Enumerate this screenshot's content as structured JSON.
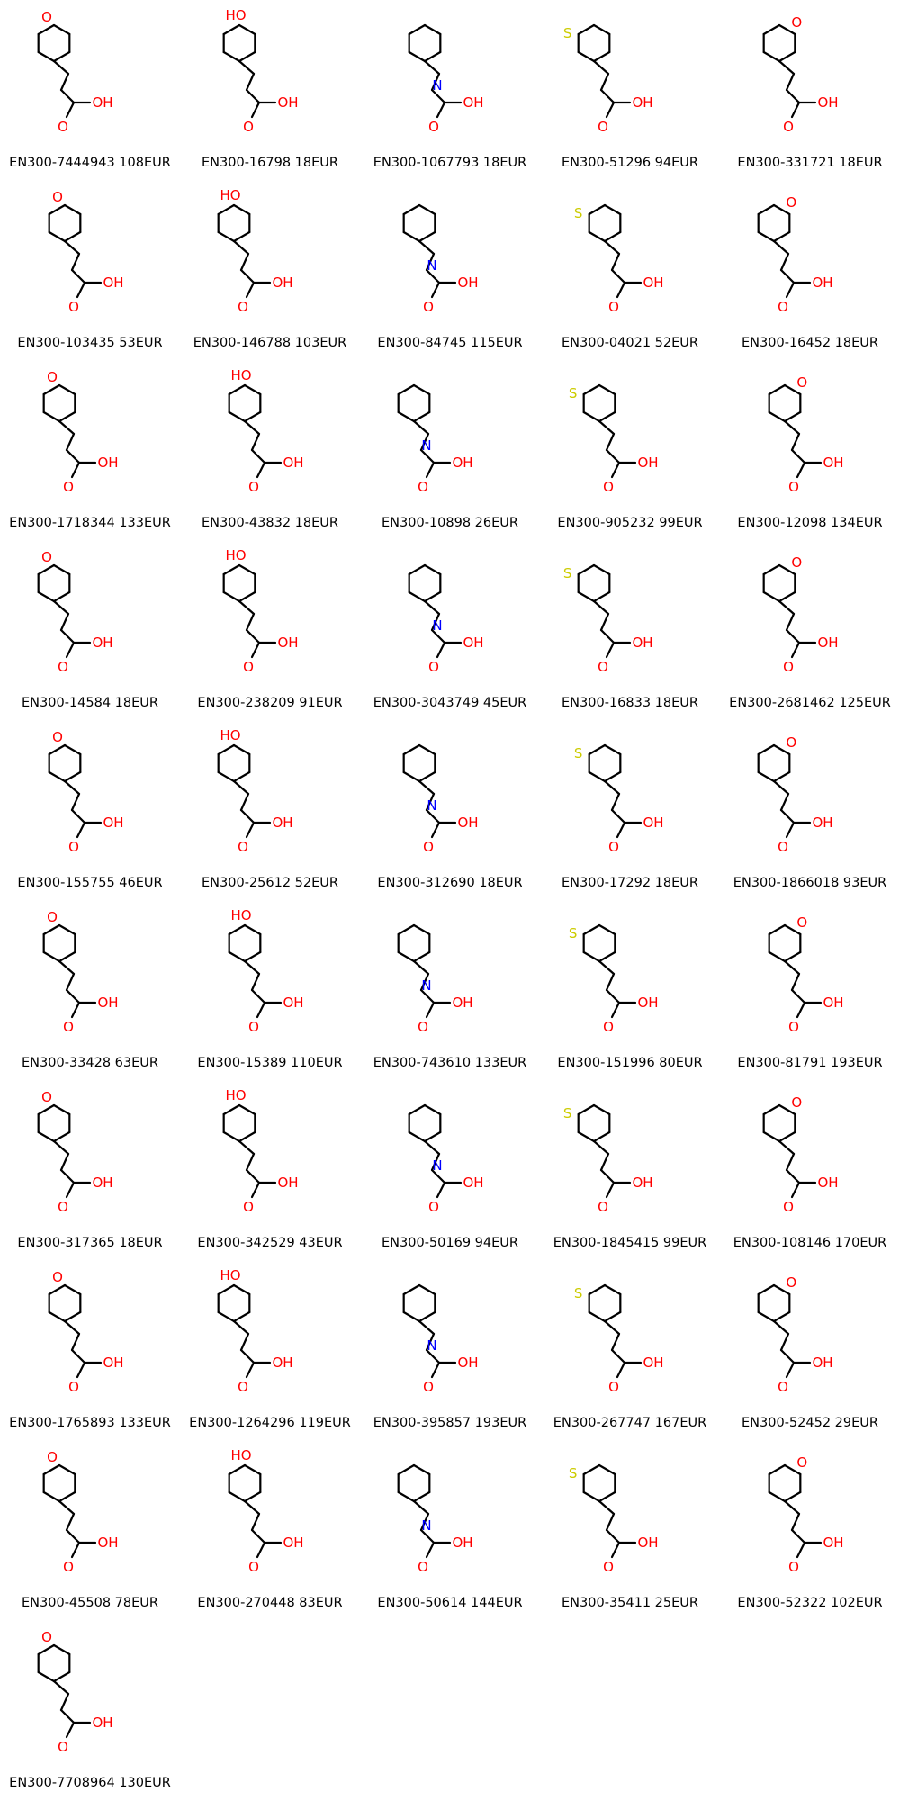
{
  "colors": {
    "carbon": "#000000",
    "oxygen": "#ff0000",
    "nitrogen": "#0000ff",
    "sulfur": "#cccc00",
    "fluorine": "#33cccc",
    "chlorine": "#00cc00"
  },
  "compounds": [
    {
      "id": "EN300-7444943",
      "price": "108EUR",
      "label": "EN300-7444943 108EUR"
    },
    {
      "id": "EN300-16798",
      "price": "18EUR",
      "label": "EN300-16798 18EUR"
    },
    {
      "id": "EN300-1067793",
      "price": "18EUR",
      "label": "EN300-1067793 18EUR"
    },
    {
      "id": "EN300-51296",
      "price": "94EUR",
      "label": "EN300-51296 94EUR"
    },
    {
      "id": "EN300-331721",
      "price": "18EUR",
      "label": "EN300-331721 18EUR"
    },
    {
      "id": "EN300-103435",
      "price": "53EUR",
      "label": "EN300-103435 53EUR"
    },
    {
      "id": "EN300-146788",
      "price": "103EUR",
      "label": "EN300-146788 103EUR"
    },
    {
      "id": "EN300-84745",
      "price": "115EUR",
      "label": "EN300-84745 115EUR"
    },
    {
      "id": "EN300-04021",
      "price": "52EUR",
      "label": "EN300-04021 52EUR"
    },
    {
      "id": "EN300-16452",
      "price": "18EUR",
      "label": "EN300-16452 18EUR"
    },
    {
      "id": "EN300-1718344",
      "price": "133EUR",
      "label": "EN300-1718344 133EUR"
    },
    {
      "id": "EN300-43832",
      "price": "18EUR",
      "label": "EN300-43832 18EUR"
    },
    {
      "id": "EN300-10898",
      "price": "26EUR",
      "label": "EN300-10898 26EUR"
    },
    {
      "id": "EN300-905232",
      "price": "99EUR",
      "label": "EN300-905232 99EUR"
    },
    {
      "id": "EN300-12098",
      "price": "134EUR",
      "label": "EN300-12098 134EUR"
    },
    {
      "id": "EN300-14584",
      "price": "18EUR",
      "label": "EN300-14584 18EUR"
    },
    {
      "id": "EN300-238209",
      "price": "91EUR",
      "label": "EN300-238209 91EUR"
    },
    {
      "id": "EN300-3043749",
      "price": "45EUR",
      "label": "EN300-3043749 45EUR"
    },
    {
      "id": "EN300-16833",
      "price": "18EUR",
      "label": "EN300-16833 18EUR"
    },
    {
      "id": "EN300-2681462",
      "price": "125EUR",
      "label": "EN300-2681462 125EUR"
    },
    {
      "id": "EN300-155755",
      "price": "46EUR",
      "label": "EN300-155755 46EUR"
    },
    {
      "id": "EN300-25612",
      "price": "52EUR",
      "label": "EN300-25612 52EUR"
    },
    {
      "id": "EN300-312690",
      "price": "18EUR",
      "label": "EN300-312690 18EUR"
    },
    {
      "id": "EN300-17292",
      "price": "18EUR",
      "label": "EN300-17292 18EUR"
    },
    {
      "id": "EN300-1866018",
      "price": "93EUR",
      "label": "EN300-1866018 93EUR"
    },
    {
      "id": "EN300-33428",
      "price": "63EUR",
      "label": "EN300-33428 63EUR"
    },
    {
      "id": "EN300-15389",
      "price": "110EUR",
      "label": "EN300-15389 110EUR"
    },
    {
      "id": "EN300-743610",
      "price": "133EUR",
      "label": "EN300-743610 133EUR"
    },
    {
      "id": "EN300-151996",
      "price": "80EUR",
      "label": "EN300-151996 80EUR"
    },
    {
      "id": "EN300-81791",
      "price": "193EUR",
      "label": "EN300-81791 193EUR"
    },
    {
      "id": "EN300-317365",
      "price": "18EUR",
      "label": "EN300-317365 18EUR"
    },
    {
      "id": "EN300-342529",
      "price": "43EUR",
      "label": "EN300-342529 43EUR"
    },
    {
      "id": "EN300-50169",
      "price": "94EUR",
      "label": "EN300-50169 94EUR"
    },
    {
      "id": "EN300-1845415",
      "price": "99EUR",
      "label": "EN300-1845415 99EUR"
    },
    {
      "id": "EN300-108146",
      "price": "170EUR",
      "label": "EN300-108146 170EUR"
    },
    {
      "id": "EN300-1765893",
      "price": "133EUR",
      "label": "EN300-1765893 133EUR"
    },
    {
      "id": "EN300-1264296",
      "price": "119EUR",
      "label": "EN300-1264296 119EUR"
    },
    {
      "id": "EN300-395857",
      "price": "193EUR",
      "label": "EN300-395857 193EUR"
    },
    {
      "id": "EN300-267747",
      "price": "167EUR",
      "label": "EN300-267747 167EUR"
    },
    {
      "id": "EN300-52452",
      "price": "29EUR",
      "label": "EN300-52452 29EUR"
    },
    {
      "id": "EN300-45508",
      "price": "78EUR",
      "label": "EN300-45508 78EUR"
    },
    {
      "id": "EN300-270448",
      "price": "83EUR",
      "label": "EN300-270448 83EUR"
    },
    {
      "id": "EN300-50614",
      "price": "144EUR",
      "label": "EN300-50614 144EUR"
    },
    {
      "id": "EN300-35411",
      "price": "25EUR",
      "label": "EN300-35411 25EUR"
    },
    {
      "id": "EN300-52322",
      "price": "102EUR",
      "label": "EN300-52322 102EUR"
    },
    {
      "id": "EN300-7708964",
      "price": "130EUR",
      "label": "EN300-7708964 130EUR"
    }
  ]
}
